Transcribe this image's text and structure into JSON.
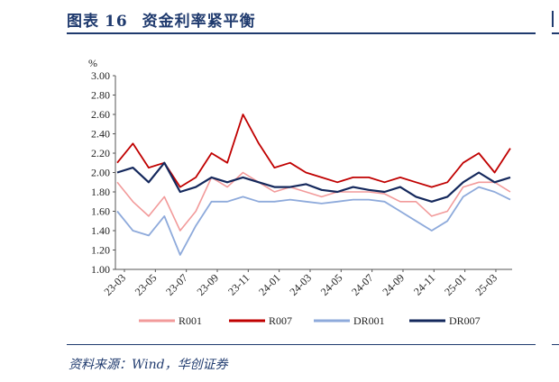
{
  "header": {
    "figure_label": "图表",
    "figure_number": "16",
    "title": "资金利率紧平衡"
  },
  "source": "资料来源：Wind，华创证券",
  "colors": {
    "accent": "#1f3a6e",
    "R001": "#f29a9a",
    "R007": "#c00000",
    "DR001": "#8eaadb",
    "DR007": "#14285c"
  },
  "chart_data": {
    "type": "line",
    "ylabel": "%",
    "ylim": [
      1.0,
      3.0
    ],
    "yticks": [
      "1.00",
      "1.20",
      "1.40",
      "1.60",
      "1.80",
      "2.00",
      "2.20",
      "2.40",
      "2.60",
      "2.80",
      "3.00"
    ],
    "xticks": [
      "23-03",
      "23-05",
      "23-07",
      "23-09",
      "23-11",
      "24-01",
      "24-03",
      "24-05",
      "24-07",
      "24-09",
      "24-11",
      "25-01",
      "25-03"
    ],
    "legend": "bottom",
    "x": [
      "23-03",
      "23-04",
      "23-05",
      "23-06",
      "23-07",
      "23-08",
      "23-09",
      "23-10",
      "23-11",
      "23-12",
      "24-01",
      "24-02",
      "24-03",
      "24-04",
      "24-05",
      "24-06",
      "24-07",
      "24-08",
      "24-09",
      "24-10",
      "24-11",
      "24-12",
      "25-01",
      "25-02",
      "25-03",
      "25-04"
    ],
    "series": [
      {
        "name": "R001",
        "values": [
          1.9,
          1.7,
          1.55,
          1.75,
          1.4,
          1.6,
          1.95,
          1.85,
          2.0,
          1.9,
          1.8,
          1.85,
          1.8,
          1.75,
          1.8,
          1.8,
          1.8,
          1.78,
          1.7,
          1.7,
          1.55,
          1.6,
          1.85,
          1.9,
          1.9,
          1.8
        ]
      },
      {
        "name": "R007",
        "values": [
          2.1,
          2.3,
          2.05,
          2.1,
          1.85,
          1.95,
          2.2,
          2.1,
          2.6,
          2.3,
          2.05,
          2.1,
          2.0,
          1.95,
          1.9,
          1.95,
          1.95,
          1.9,
          1.95,
          1.9,
          1.85,
          1.9,
          2.1,
          2.2,
          2.0,
          2.25
        ]
      },
      {
        "name": "DR001",
        "values": [
          1.6,
          1.4,
          1.35,
          1.55,
          1.15,
          1.45,
          1.7,
          1.7,
          1.75,
          1.7,
          1.7,
          1.72,
          1.7,
          1.68,
          1.7,
          1.72,
          1.72,
          1.7,
          1.6,
          1.5,
          1.4,
          1.5,
          1.75,
          1.85,
          1.8,
          1.72
        ]
      },
      {
        "name": "DR007",
        "values": [
          2.0,
          2.05,
          1.9,
          2.1,
          1.8,
          1.85,
          1.95,
          1.9,
          1.95,
          1.9,
          1.85,
          1.85,
          1.88,
          1.82,
          1.8,
          1.85,
          1.82,
          1.8,
          1.85,
          1.75,
          1.7,
          1.75,
          1.9,
          2.0,
          1.9,
          1.95
        ]
      }
    ]
  }
}
